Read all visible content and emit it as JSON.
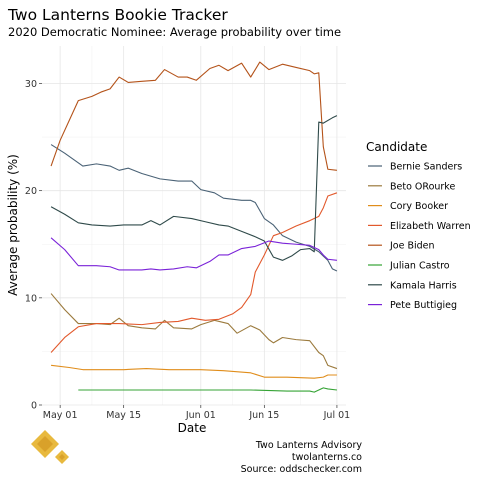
{
  "chart_data": {
    "type": "line",
    "title": "Two Lanterns Bookie Tracker",
    "subtitle": "2020 Democratic Nominee: Average probability over time",
    "xlabel": "Date",
    "ylabel": "Average probability (%)",
    "xlim": [
      "2019-04-27",
      "2019-07-03"
    ],
    "ylim": [
      0,
      33.5
    ],
    "x_ticks": [
      {
        "value": "2019-05-01",
        "label": "May 01"
      },
      {
        "value": "2019-05-15",
        "label": "May 15"
      },
      {
        "value": "2019-06-01",
        "label": "Jun 01"
      },
      {
        "value": "2019-06-15",
        "label": "Jun 15"
      },
      {
        "value": "2019-07-01",
        "label": "Jul 01"
      }
    ],
    "y_ticks": [
      0,
      10,
      20,
      30
    ],
    "grid": true,
    "legend": {
      "title": "Candidate",
      "position": "right"
    },
    "series": [
      {
        "name": "Bernie Sanders",
        "color": "#4a6276",
        "points": [
          [
            "2019-04-29",
            24.3
          ],
          [
            "2019-05-02",
            23.5
          ],
          [
            "2019-05-06",
            22.3
          ],
          [
            "2019-05-09",
            22.5
          ],
          [
            "2019-05-12",
            22.3
          ],
          [
            "2019-05-14",
            21.9
          ],
          [
            "2019-05-16",
            22.1
          ],
          [
            "2019-05-19",
            21.6
          ],
          [
            "2019-05-23",
            21.1
          ],
          [
            "2019-05-27",
            20.9
          ],
          [
            "2019-05-30",
            20.9
          ],
          [
            "2019-06-01",
            20.1
          ],
          [
            "2019-06-04",
            19.8
          ],
          [
            "2019-06-06",
            19.3
          ],
          [
            "2019-06-10",
            19.1
          ],
          [
            "2019-06-12",
            19.1
          ],
          [
            "2019-06-13",
            18.9
          ],
          [
            "2019-06-15",
            17.4
          ],
          [
            "2019-06-17",
            16.8
          ],
          [
            "2019-06-19",
            15.8
          ],
          [
            "2019-06-22",
            15.2
          ],
          [
            "2019-06-25",
            14.8
          ],
          [
            "2019-06-27",
            14.3
          ],
          [
            "2019-06-28",
            13.9
          ],
          [
            "2019-06-29",
            13.5
          ],
          [
            "2019-06-30",
            12.7
          ],
          [
            "2019-07-01",
            12.5
          ]
        ]
      },
      {
        "name": "Beto ORourke",
        "color": "#9b7a3d",
        "points": [
          [
            "2019-04-29",
            10.4
          ],
          [
            "2019-05-02",
            8.9
          ],
          [
            "2019-05-05",
            7.6
          ],
          [
            "2019-05-09",
            7.6
          ],
          [
            "2019-05-12",
            7.5
          ],
          [
            "2019-05-14",
            8.1
          ],
          [
            "2019-05-16",
            7.4
          ],
          [
            "2019-05-19",
            7.2
          ],
          [
            "2019-05-22",
            7.1
          ],
          [
            "2019-05-24",
            7.9
          ],
          [
            "2019-05-26",
            7.2
          ],
          [
            "2019-05-30",
            7.1
          ],
          [
            "2019-06-01",
            7.5
          ],
          [
            "2019-06-04",
            7.9
          ],
          [
            "2019-06-07",
            7.6
          ],
          [
            "2019-06-09",
            6.7
          ],
          [
            "2019-06-12",
            7.4
          ],
          [
            "2019-06-14",
            7.0
          ],
          [
            "2019-06-16",
            6.1
          ],
          [
            "2019-06-17",
            5.8
          ],
          [
            "2019-06-19",
            6.3
          ],
          [
            "2019-06-22",
            6.1
          ],
          [
            "2019-06-25",
            6.0
          ],
          [
            "2019-06-27",
            4.9
          ],
          [
            "2019-06-28",
            4.6
          ],
          [
            "2019-06-29",
            3.7
          ],
          [
            "2019-07-01",
            3.4
          ]
        ]
      },
      {
        "name": "Cory Booker",
        "color": "#e08d1b",
        "points": [
          [
            "2019-04-29",
            3.7
          ],
          [
            "2019-05-03",
            3.5
          ],
          [
            "2019-05-06",
            3.3
          ],
          [
            "2019-05-10",
            3.3
          ],
          [
            "2019-05-15",
            3.3
          ],
          [
            "2019-05-20",
            3.4
          ],
          [
            "2019-05-25",
            3.3
          ],
          [
            "2019-06-01",
            3.3
          ],
          [
            "2019-06-06",
            3.2
          ],
          [
            "2019-06-12",
            3.0
          ],
          [
            "2019-06-15",
            2.6
          ],
          [
            "2019-06-20",
            2.6
          ],
          [
            "2019-06-26",
            2.5
          ],
          [
            "2019-06-28",
            2.6
          ],
          [
            "2019-06-29",
            2.8
          ],
          [
            "2019-07-01",
            2.8
          ]
        ]
      },
      {
        "name": "Elizabeth Warren",
        "color": "#e2592c",
        "points": [
          [
            "2019-04-29",
            4.9
          ],
          [
            "2019-05-02",
            6.3
          ],
          [
            "2019-05-05",
            7.3
          ],
          [
            "2019-05-09",
            7.6
          ],
          [
            "2019-05-14",
            7.6
          ],
          [
            "2019-05-19",
            7.5
          ],
          [
            "2019-05-23",
            7.7
          ],
          [
            "2019-05-27",
            7.8
          ],
          [
            "2019-05-30",
            8.1
          ],
          [
            "2019-06-02",
            7.9
          ],
          [
            "2019-06-05",
            8.0
          ],
          [
            "2019-06-08",
            8.5
          ],
          [
            "2019-06-10",
            9.1
          ],
          [
            "2019-06-12",
            10.3
          ],
          [
            "2019-06-13",
            12.4
          ],
          [
            "2019-06-15",
            14.0
          ],
          [
            "2019-06-17",
            15.8
          ],
          [
            "2019-06-19",
            16.1
          ],
          [
            "2019-06-22",
            16.7
          ],
          [
            "2019-06-25",
            17.2
          ],
          [
            "2019-06-27",
            17.6
          ],
          [
            "2019-06-28",
            18.4
          ],
          [
            "2019-06-29",
            19.5
          ],
          [
            "2019-07-01",
            19.8
          ]
        ]
      },
      {
        "name": "Joe Biden",
        "color": "#b4531a",
        "points": [
          [
            "2019-04-29",
            22.3
          ],
          [
            "2019-05-01",
            24.7
          ],
          [
            "2019-05-05",
            28.4
          ],
          [
            "2019-05-08",
            28.8
          ],
          [
            "2019-05-10",
            29.2
          ],
          [
            "2019-05-12",
            29.5
          ],
          [
            "2019-05-14",
            30.6
          ],
          [
            "2019-05-16",
            30.1
          ],
          [
            "2019-05-19",
            30.2
          ],
          [
            "2019-05-22",
            30.3
          ],
          [
            "2019-05-24",
            31.3
          ],
          [
            "2019-05-27",
            30.6
          ],
          [
            "2019-05-29",
            30.6
          ],
          [
            "2019-05-31",
            30.3
          ],
          [
            "2019-06-03",
            31.4
          ],
          [
            "2019-06-05",
            31.7
          ],
          [
            "2019-06-07",
            31.2
          ],
          [
            "2019-06-10",
            31.9
          ],
          [
            "2019-06-12",
            30.6
          ],
          [
            "2019-06-14",
            32.0
          ],
          [
            "2019-06-16",
            31.3
          ],
          [
            "2019-06-19",
            31.8
          ],
          [
            "2019-06-22",
            31.5
          ],
          [
            "2019-06-25",
            31.2
          ],
          [
            "2019-06-26",
            30.9
          ],
          [
            "2019-06-27",
            31.0
          ],
          [
            "2019-06-28",
            24.1
          ],
          [
            "2019-06-29",
            22.0
          ],
          [
            "2019-07-01",
            21.9
          ]
        ]
      },
      {
        "name": "Julian Castro",
        "color": "#35a335",
        "points": [
          [
            "2019-05-05",
            1.4
          ],
          [
            "2019-05-12",
            1.4
          ],
          [
            "2019-05-20",
            1.4
          ],
          [
            "2019-06-01",
            1.4
          ],
          [
            "2019-06-12",
            1.4
          ],
          [
            "2019-06-20",
            1.3
          ],
          [
            "2019-06-25",
            1.3
          ],
          [
            "2019-06-26",
            1.2
          ],
          [
            "2019-06-28",
            1.6
          ],
          [
            "2019-06-29",
            1.5
          ],
          [
            "2019-07-01",
            1.4
          ]
        ]
      },
      {
        "name": "Kamala Harris",
        "color": "#2f4a4a",
        "points": [
          [
            "2019-04-29",
            18.5
          ],
          [
            "2019-05-02",
            17.8
          ],
          [
            "2019-05-05",
            17.0
          ],
          [
            "2019-05-08",
            16.8
          ],
          [
            "2019-05-12",
            16.7
          ],
          [
            "2019-05-15",
            16.8
          ],
          [
            "2019-05-19",
            16.8
          ],
          [
            "2019-05-21",
            17.2
          ],
          [
            "2019-05-23",
            16.8
          ],
          [
            "2019-05-26",
            17.6
          ],
          [
            "2019-05-30",
            17.4
          ],
          [
            "2019-06-02",
            17.1
          ],
          [
            "2019-06-05",
            16.8
          ],
          [
            "2019-06-07",
            16.7
          ],
          [
            "2019-06-10",
            16.2
          ],
          [
            "2019-06-13",
            15.7
          ],
          [
            "2019-06-15",
            15.3
          ],
          [
            "2019-06-17",
            13.8
          ],
          [
            "2019-06-19",
            13.5
          ],
          [
            "2019-06-21",
            13.9
          ],
          [
            "2019-06-23",
            14.5
          ],
          [
            "2019-06-25",
            14.6
          ],
          [
            "2019-06-26",
            14.3
          ],
          [
            "2019-06-27",
            26.4
          ],
          [
            "2019-06-28",
            26.3
          ],
          [
            "2019-06-30",
            26.8
          ],
          [
            "2019-07-01",
            27.0
          ]
        ]
      },
      {
        "name": "Pete Buttigieg",
        "color": "#7a22d8",
        "points": [
          [
            "2019-04-29",
            15.6
          ],
          [
            "2019-05-02",
            14.5
          ],
          [
            "2019-05-05",
            13.0
          ],
          [
            "2019-05-09",
            13.0
          ],
          [
            "2019-05-12",
            12.9
          ],
          [
            "2019-05-14",
            12.6
          ],
          [
            "2019-05-19",
            12.6
          ],
          [
            "2019-05-21",
            12.7
          ],
          [
            "2019-05-23",
            12.6
          ],
          [
            "2019-05-26",
            12.7
          ],
          [
            "2019-05-29",
            12.9
          ],
          [
            "2019-05-31",
            12.8
          ],
          [
            "2019-06-03",
            13.4
          ],
          [
            "2019-06-05",
            14.0
          ],
          [
            "2019-06-07",
            14.0
          ],
          [
            "2019-06-10",
            14.6
          ],
          [
            "2019-06-13",
            14.8
          ],
          [
            "2019-06-16",
            15.3
          ],
          [
            "2019-06-19",
            15.1
          ],
          [
            "2019-06-22",
            15.0
          ],
          [
            "2019-06-25",
            14.9
          ],
          [
            "2019-06-27",
            14.5
          ],
          [
            "2019-06-28",
            14.0
          ],
          [
            "2019-06-29",
            13.6
          ],
          [
            "2019-07-01",
            13.5
          ]
        ]
      }
    ]
  },
  "caption": {
    "line1": "Two Lanterns Advisory",
    "line2": "twolanterns.co",
    "line3": "Source: oddschecker.com"
  },
  "logo": {
    "icon": "lantern-diamond-logo",
    "color": "#e8b93e"
  }
}
